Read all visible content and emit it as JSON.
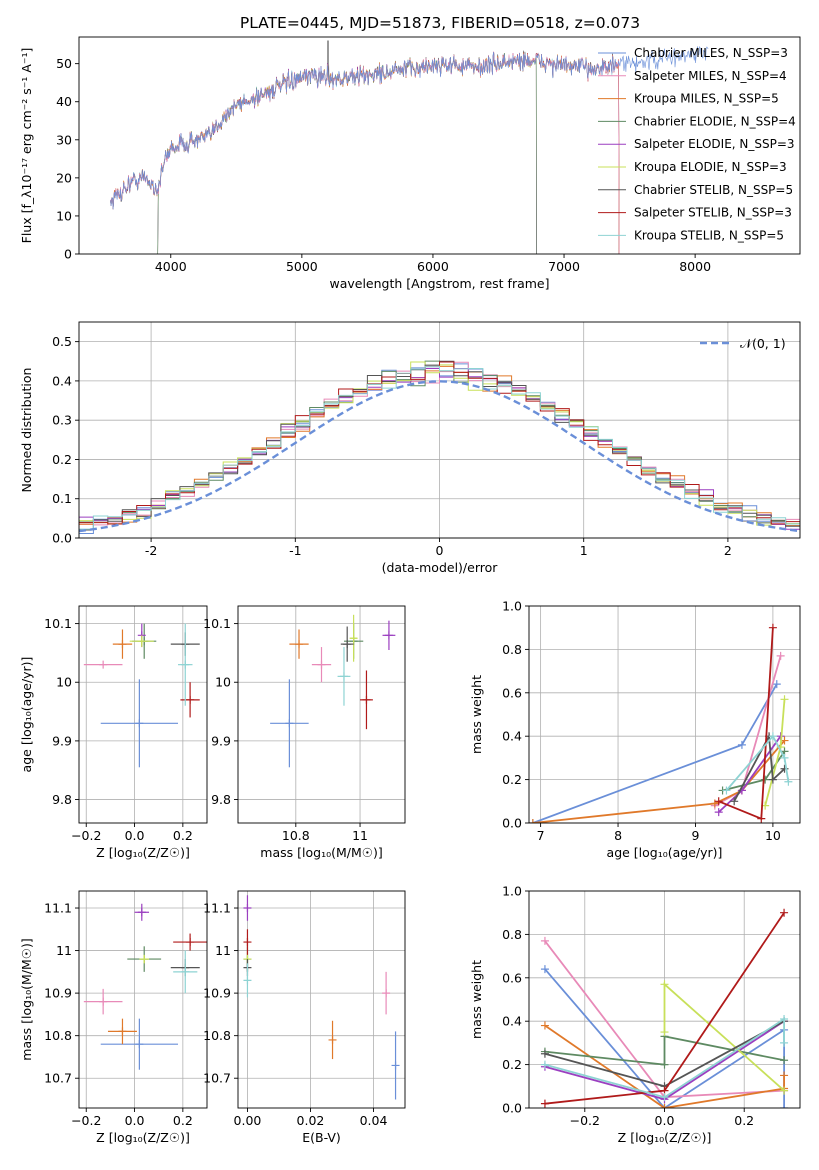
{
  "title": "PLATE=0445, MJD=51873, FIBERID=0518, z=0.073",
  "colors": {
    "chabrier_miles": "#6a8fd8",
    "salpeter_miles": "#e88ab8",
    "kroupa_miles": "#e0792a",
    "chabrier_elodie": "#5e8a62",
    "salpeter_elodie": "#9b3fc0",
    "kroupa_elodie": "#c8e05a",
    "chabrier_stelib": "#555555",
    "salpeter_stelib": "#b01a1a",
    "kroupa_stelib": "#8ed3d3",
    "normal": "#6a8fd8"
  },
  "chart_data": [
    {
      "id": "spectrum",
      "type": "line",
      "title": "PLATE=0445, MJD=51873, FIBERID=0518, z=0.073",
      "xlabel": "wavelength [Angstrom, rest frame]",
      "ylabel": "Flux [f_λ10⁻¹⁷ erg cm⁻² s⁻¹ A⁻¹]",
      "xlim": [
        3300,
        8800
      ],
      "ylim": [
        0,
        57
      ],
      "xticks": [
        4000,
        5000,
        6000,
        7000,
        8000
      ],
      "yticks": [
        0,
        10,
        20,
        30,
        40,
        50
      ],
      "legend_position": "top-right",
      "legend": [
        {
          "label": "Chabrier MILES, N_SSP=3",
          "color_key": "chabrier_miles"
        },
        {
          "label": "Salpeter MILES, N_SSP=4",
          "color_key": "salpeter_miles"
        },
        {
          "label": "Kroupa MILES, N_SSP=5",
          "color_key": "kroupa_miles"
        },
        {
          "label": "Chabrier ELODIE, N_SSP=4",
          "color_key": "chabrier_elodie"
        },
        {
          "label": "Salpeter ELODIE, N_SSP=3",
          "color_key": "salpeter_elodie"
        },
        {
          "label": "Kroupa ELODIE, N_SSP=3",
          "color_key": "kroupa_elodie"
        },
        {
          "label": "Chabrier STELIB, N_SSP=5",
          "color_key": "chabrier_stelib"
        },
        {
          "label": "Salpeter STELIB, N_SSP=3",
          "color_key": "salpeter_stelib"
        },
        {
          "label": "Kroupa STELIB, N_SSP=5",
          "color_key": "kroupa_stelib"
        }
      ],
      "trend": {
        "x": [
          3550,
          3700,
          3800,
          3900,
          3950,
          4000,
          4100,
          4200,
          4300,
          4400,
          4500,
          4700,
          4900,
          5100,
          5300,
          5500,
          5700,
          5900,
          6100,
          6300,
          6500,
          6700,
          6900,
          7100,
          7300,
          7500,
          7700,
          7900,
          8100
        ],
        "y": [
          14,
          19,
          20,
          17,
          24,
          28,
          29,
          30,
          31,
          36,
          39,
          42,
          45,
          47,
          46,
          47,
          48,
          49,
          50,
          49,
          50,
          51,
          50,
          49,
          49,
          50,
          51,
          52,
          53
        ]
      },
      "ranges": [
        {
          "series": "chabrier_miles",
          "xmin": 3540,
          "xmax": 8100
        },
        {
          "series": "salpeter_miles",
          "xmin": 3540,
          "xmax": 7420
        },
        {
          "series": "kroupa_miles",
          "xmin": 3540,
          "xmax": 7420
        },
        {
          "series": "chabrier_elodie",
          "xmin": 3900,
          "xmax": 6790
        },
        {
          "series": "salpeter_elodie",
          "xmin": 3900,
          "xmax": 6790
        },
        {
          "series": "kroupa_elodie",
          "xmin": 3900,
          "xmax": 6790
        },
        {
          "series": "chabrier_stelib",
          "xmin": 3540,
          "xmax": 7420
        },
        {
          "series": "salpeter_stelib",
          "xmin": 3540,
          "xmax": 7420
        },
        {
          "series": "kroupa_stelib",
          "xmin": 3540,
          "xmax": 7420
        }
      ]
    },
    {
      "id": "residuals",
      "type": "line",
      "xlabel": "(data-model)/error",
      "ylabel": "Normed distribution",
      "xlim": [
        -2.5,
        2.5
      ],
      "ylim": [
        0,
        0.55
      ],
      "xticks": [
        -2,
        -1,
        0,
        1,
        2
      ],
      "yticks": [
        0.0,
        0.1,
        0.2,
        0.3,
        0.4,
        0.5
      ],
      "grid": true,
      "legend_position": "top-right",
      "legend": [
        {
          "label": "𝒩(0, 1)",
          "color_key": "normal",
          "style": "dashed"
        }
      ],
      "bin_width": 0.1,
      "bin_start": -2.5,
      "bins": 50,
      "series_keys": [
        "chabrier_miles",
        "salpeter_miles",
        "kroupa_miles",
        "chabrier_elodie",
        "salpeter_elodie",
        "kroupa_elodie",
        "chabrier_stelib",
        "salpeter_stelib",
        "kroupa_stelib"
      ]
    },
    {
      "id": "age_vs_z",
      "type": "scatter",
      "xlabel": "Z [log₁₀(Z/Z☉)]",
      "ylabel": "age  [log₁₀(age/yr)]",
      "xlim": [
        -0.23,
        0.3
      ],
      "ylim": [
        9.76,
        10.13
      ],
      "xticks": [
        -0.2,
        0.0,
        0.2
      ],
      "xtick_labels": [
        "−0.2",
        "0.0",
        "0.2"
      ],
      "yticks": [
        9.8,
        9.9,
        10.0,
        10.1
      ],
      "grid": true,
      "points": [
        {
          "series": "chabrier_miles",
          "x": 0.02,
          "xerr": 0.16,
          "y": 9.93,
          "yerr": 0.075
        },
        {
          "series": "salpeter_miles",
          "x": -0.13,
          "xerr": 0.08,
          "y": 10.03,
          "yerr": 0.0
        },
        {
          "series": "kroupa_miles",
          "x": -0.05,
          "xerr": 0.04,
          "y": 10.065,
          "yerr": 0.025
        },
        {
          "series": "chabrier_elodie",
          "x": 0.04,
          "xerr": 0.05,
          "y": 10.07,
          "yerr": 0.03
        },
        {
          "series": "salpeter_elodie",
          "x": 0.03,
          "xerr": 0.0,
          "y": 10.08,
          "yerr": 0.02
        },
        {
          "series": "kroupa_elodie",
          "x": 0.03,
          "xerr": 0.05,
          "y": 10.07,
          "yerr": 0.01
        },
        {
          "series": "chabrier_stelib",
          "x": 0.21,
          "xerr": 0.06,
          "y": 10.065,
          "yerr": 0.02
        },
        {
          "series": "salpeter_stelib",
          "x": 0.23,
          "xerr": 0.04,
          "y": 9.97,
          "yerr": 0.03
        },
        {
          "series": "kroupa_stelib",
          "x": 0.21,
          "xerr": 0.03,
          "y": 10.03,
          "yerr": 0.07
        }
      ]
    },
    {
      "id": "age_vs_mass",
      "type": "scatter",
      "xlabel": "mass [log₁₀(M/M☉)]",
      "xlim": [
        10.62,
        11.14
      ],
      "ylim": [
        9.76,
        10.13
      ],
      "xticks": [
        10.8,
        11.0
      ],
      "yticks": [
        9.8,
        9.9,
        10.0,
        10.1
      ],
      "grid": true,
      "points": [
        {
          "series": "chabrier_miles",
          "x": 10.78,
          "xerr": 0.06,
          "y": 9.93,
          "yerr": 0.075
        },
        {
          "series": "salpeter_miles",
          "x": 10.88,
          "xerr": 0.03,
          "y": 10.03,
          "yerr": 0.03
        },
        {
          "series": "kroupa_miles",
          "x": 10.81,
          "xerr": 0.03,
          "y": 10.065,
          "yerr": 0.025
        },
        {
          "series": "chabrier_elodie",
          "x": 10.98,
          "xerr": 0.03,
          "y": 10.07,
          "yerr": 0.03
        },
        {
          "series": "salpeter_elodie",
          "x": 11.09,
          "xerr": 0.02,
          "y": 10.08,
          "yerr": 0.025
        },
        {
          "series": "kroupa_elodie",
          "x": 10.98,
          "xerr": 0.01,
          "y": 10.075,
          "yerr": 0.04
        },
        {
          "series": "chabrier_stelib",
          "x": 10.96,
          "xerr": 0.02,
          "y": 10.065,
          "yerr": 0.03
        },
        {
          "series": "salpeter_stelib",
          "x": 11.02,
          "xerr": 0.02,
          "y": 9.97,
          "yerr": 0.05
        },
        {
          "series": "kroupa_stelib",
          "x": 10.95,
          "xerr": 0.02,
          "y": 10.01,
          "yerr": 0.05
        }
      ]
    },
    {
      "id": "weight_vs_age",
      "type": "line",
      "xlabel": "age  [log₁₀(age/yr)]",
      "ylabel": "mass weight",
      "xlim": [
        6.85,
        10.35
      ],
      "ylim": [
        0,
        1.0
      ],
      "xticks": [
        7,
        8,
        9,
        10
      ],
      "yticks": [
        0.0,
        0.2,
        0.4,
        0.6,
        0.8,
        1.0
      ],
      "grid": true,
      "series": [
        {
          "series": "chabrier_miles",
          "x": [
            6.9,
            9.6,
            10.05
          ],
          "y": [
            0.0,
            0.36,
            0.64
          ]
        },
        {
          "series": "salpeter_miles",
          "x": [
            9.25,
            9.6,
            10.1
          ],
          "y": [
            0.08,
            0.15,
            0.77
          ]
        },
        {
          "series": "kroupa_miles",
          "x": [
            6.9,
            9.25,
            9.6,
            10.15
          ],
          "y": [
            0.0,
            0.09,
            0.15,
            0.38
          ]
        },
        {
          "series": "chabrier_elodie",
          "x": [
            9.35,
            9.9,
            10.15
          ],
          "y": [
            0.15,
            0.2,
            0.33
          ]
        },
        {
          "series": "salpeter_elodie",
          "x": [
            9.3,
            9.6,
            10.1
          ],
          "y": [
            0.05,
            0.15,
            0.4
          ]
        },
        {
          "series": "kroupa_elodie",
          "x": [
            9.9,
            10.1,
            10.15
          ],
          "y": [
            0.08,
            0.35,
            0.57
          ]
        },
        {
          "series": "chabrier_stelib",
          "x": [
            9.5,
            9.95,
            10.0,
            10.15
          ],
          "y": [
            0.1,
            0.4,
            0.2,
            0.25
          ]
        },
        {
          "series": "salpeter_stelib",
          "x": [
            9.3,
            9.85,
            10.0
          ],
          "y": [
            0.1,
            0.02,
            0.9
          ]
        },
        {
          "series": "kroupa_stelib",
          "x": [
            9.4,
            10.0,
            10.15,
            10.2
          ],
          "y": [
            0.15,
            0.4,
            0.3,
            0.19
          ]
        }
      ]
    },
    {
      "id": "mass_vs_z",
      "type": "scatter",
      "xlabel": "Z [log₁₀(Z/Z☉)]",
      "ylabel": "mass [log₁₀(M/M☉)]",
      "xlim": [
        -0.23,
        0.3
      ],
      "ylim": [
        10.63,
        11.14
      ],
      "xticks": [
        -0.2,
        0.0,
        0.2
      ],
      "xtick_labels": [
        "−0.2",
        "0.0",
        "0.2"
      ],
      "yticks": [
        10.7,
        10.8,
        10.9,
        11.0,
        11.1
      ],
      "grid": true,
      "points": [
        {
          "series": "chabrier_miles",
          "x": 0.02,
          "xerr": 0.16,
          "y": 10.78,
          "yerr": 0.06
        },
        {
          "series": "salpeter_miles",
          "x": -0.13,
          "xerr": 0.08,
          "y": 10.88,
          "yerr": 0.03
        },
        {
          "series": "kroupa_miles",
          "x": -0.05,
          "xerr": 0.06,
          "y": 10.81,
          "yerr": 0.03
        },
        {
          "series": "chabrier_elodie",
          "x": 0.04,
          "xerr": 0.07,
          "y": 10.98,
          "yerr": 0.03
        },
        {
          "series": "salpeter_elodie",
          "x": 0.03,
          "xerr": 0.03,
          "y": 11.09,
          "yerr": 0.02
        },
        {
          "series": "kroupa_elodie",
          "x": 0.04,
          "xerr": 0.02,
          "y": 10.98,
          "yerr": 0.01
        },
        {
          "series": "chabrier_stelib",
          "x": 0.21,
          "xerr": 0.06,
          "y": 10.96,
          "yerr": 0.02
        },
        {
          "series": "salpeter_stelib",
          "x": 0.23,
          "xerr": 0.07,
          "y": 11.02,
          "yerr": 0.02
        },
        {
          "series": "kroupa_stelib",
          "x": 0.21,
          "xerr": 0.05,
          "y": 10.95,
          "yerr": 0.05
        }
      ]
    },
    {
      "id": "ebv",
      "type": "scatter",
      "xlabel": "E(B-V)",
      "xlim": [
        -0.003,
        0.05
      ],
      "ylim": [
        10.63,
        11.14
      ],
      "xticks": [
        0.0,
        0.02,
        0.04
      ],
      "xtick_labels": [
        "0.00",
        "0.02",
        "0.04"
      ],
      "yticks": [
        10.7,
        10.8,
        10.9,
        11.0,
        11.1
      ],
      "grid": true,
      "points": [
        {
          "series": "chabrier_miles",
          "x": 0.047,
          "y": 10.73,
          "yerr": 0.08
        },
        {
          "series": "salpeter_miles",
          "x": 0.044,
          "y": 10.9,
          "yerr": 0.05
        },
        {
          "series": "kroupa_miles",
          "x": 0.027,
          "y": 10.79,
          "yerr": 0.045
        },
        {
          "series": "chabrier_elodie",
          "x": 0.0,
          "y": 10.98,
          "yerr": 0.03
        },
        {
          "series": "salpeter_elodie",
          "x": 0.0,
          "y": 11.1,
          "yerr": 0.03
        },
        {
          "series": "kroupa_elodie",
          "x": 0.0,
          "y": 10.98,
          "yerr": 0.015
        },
        {
          "series": "chabrier_stelib",
          "x": 0.0,
          "y": 10.96,
          "yerr": 0.02
        },
        {
          "series": "salpeter_stelib",
          "x": 0.0,
          "y": 11.02,
          "yerr": 0.03
        },
        {
          "series": "kroupa_stelib",
          "x": 0.0,
          "y": 10.93,
          "yerr": 0.04
        }
      ]
    },
    {
      "id": "weight_vs_z",
      "type": "line",
      "xlabel": "Z [log₁₀(Z/Z☉)]",
      "ylabel": "mass weight",
      "xlim": [
        -0.34,
        0.34
      ],
      "ylim": [
        0,
        1.0
      ],
      "xticks": [
        -0.2,
        0.0,
        0.2
      ],
      "xtick_labels": [
        "−0.2",
        "0.0",
        "0.2"
      ],
      "yticks": [
        0.0,
        0.2,
        0.4,
        0.6,
        0.8,
        1.0
      ],
      "grid": true,
      "series": [
        {
          "series": "chabrier_miles",
          "x": [
            -0.3,
            0.0,
            0.3,
            0.3
          ],
          "y": [
            0.64,
            0.0,
            0.36,
            0.0
          ]
        },
        {
          "series": "salpeter_miles",
          "x": [
            -0.3,
            0.0,
            0.3
          ],
          "y": [
            0.77,
            0.05,
            0.08
          ]
        },
        {
          "series": "kroupa_miles",
          "x": [
            -0.3,
            0.0,
            0.3,
            0.3
          ],
          "y": [
            0.38,
            0.0,
            0.09,
            0.15
          ]
        },
        {
          "series": "chabrier_elodie",
          "x": [
            -0.3,
            0.0,
            0.0,
            0.3
          ],
          "y": [
            0.26,
            0.2,
            0.33,
            0.22
          ]
        },
        {
          "series": "salpeter_elodie",
          "x": [
            -0.3,
            0.0,
            0.3
          ],
          "y": [
            0.19,
            0.04,
            0.4
          ]
        },
        {
          "series": "kroupa_elodie",
          "x": [
            0.0,
            0.0,
            0.3
          ],
          "y": [
            0.35,
            0.57,
            0.08
          ]
        },
        {
          "series": "chabrier_stelib",
          "x": [
            -0.3,
            0.0,
            0.3
          ],
          "y": [
            0.25,
            0.1,
            0.4
          ]
        },
        {
          "series": "salpeter_stelib",
          "x": [
            -0.3,
            0.0,
            0.3
          ],
          "y": [
            0.02,
            0.08,
            0.9
          ]
        },
        {
          "series": "kroupa_stelib",
          "x": [
            -0.3,
            0.0,
            0.3,
            0.3
          ],
          "y": [
            0.2,
            0.05,
            0.41,
            0.3
          ]
        }
      ]
    }
  ]
}
